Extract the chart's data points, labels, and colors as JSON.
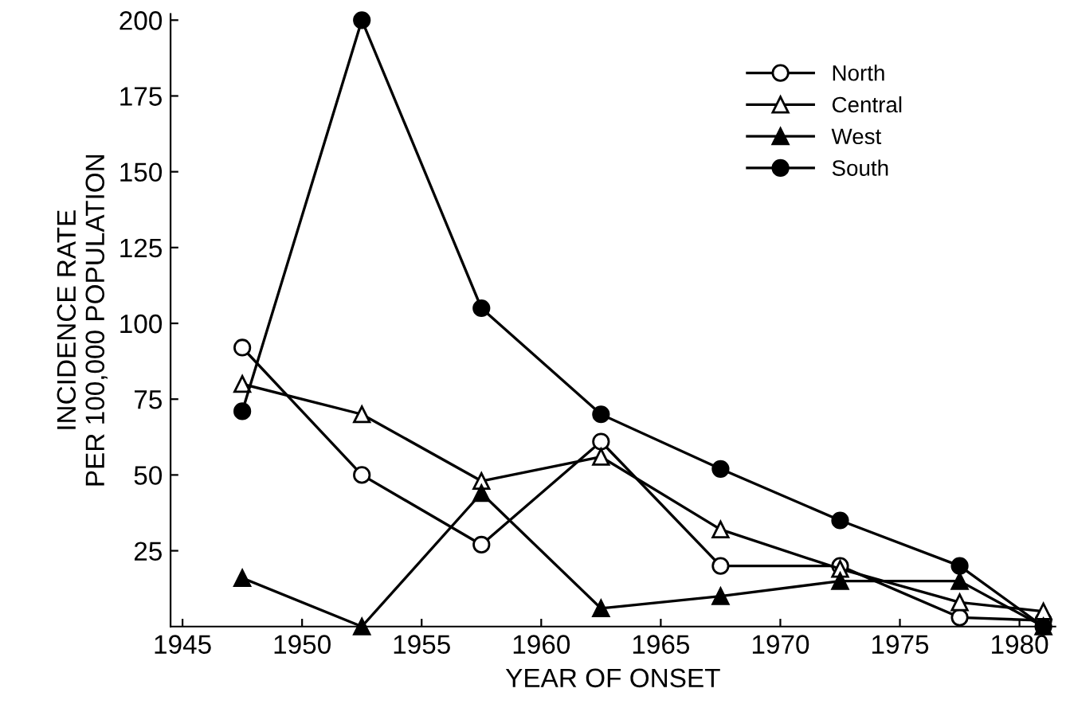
{
  "chart_data": {
    "type": "line",
    "xlabel": "YEAR OF ONSET",
    "ylabel": "INCIDENCE RATE\nPER 100,000 POPULATION",
    "x": [
      1947.5,
      1952.5,
      1957.5,
      1962.5,
      1967.5,
      1972.5,
      1977.5,
      1981
    ],
    "series": [
      {
        "name": "North",
        "color": "#ffffff",
        "marker": "circle",
        "values": [
          92,
          50,
          27,
          61,
          20,
          20,
          3,
          2
        ]
      },
      {
        "name": "Central",
        "color": "#ffffff",
        "marker": "triangle",
        "values": [
          80,
          70,
          48,
          56,
          32,
          19,
          8,
          5
        ]
      },
      {
        "name": "West",
        "color": "#000000",
        "marker": "triangle",
        "values": [
          16,
          0,
          44,
          6,
          10,
          15,
          15,
          0
        ]
      },
      {
        "name": "South",
        "color": "#000000",
        "marker": "circle",
        "values": [
          71,
          200,
          105,
          70,
          52,
          35,
          20,
          0
        ]
      }
    ],
    "xlim": [
      1944.5,
      1981.5
    ],
    "xticks": [
      1945,
      1950,
      1955,
      1960,
      1965,
      1970,
      1975,
      1980
    ],
    "ylim": [
      0,
      202
    ],
    "yticks": [
      25,
      50,
      75,
      100,
      125,
      150,
      175,
      200
    ],
    "grid": false,
    "legend": "top right",
    "line_style": "solid"
  }
}
